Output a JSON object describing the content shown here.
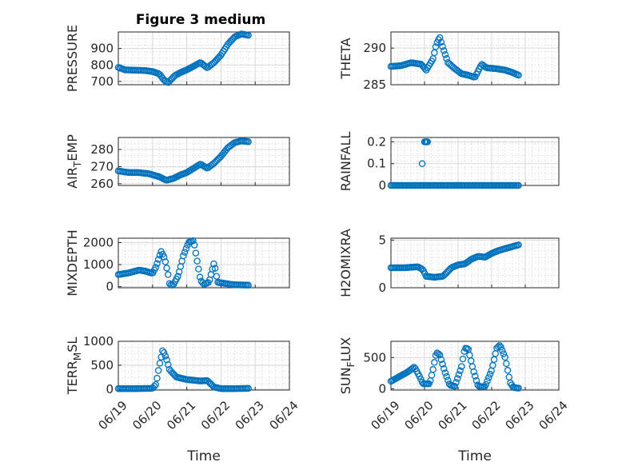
{
  "figure": {
    "title": "Figure 3 medium"
  },
  "chart_data": [
    {
      "type": "scatter",
      "ylabel": "PRESSURE",
      "title": "Figure 3 medium",
      "xlim": [
        "06/19",
        "06/24"
      ],
      "ylim": [
        680,
        1000
      ],
      "yticks": [
        "700",
        "800",
        "900"
      ],
      "yticks_values": [
        700,
        800,
        900
      ],
      "xticks": [
        "06/19",
        "06/20",
        "06/21",
        "06/22",
        "06/23",
        "06/24"
      ],
      "show_xticklabels": false,
      "grid": true,
      "marker_color": "#0072BD",
      "knots": [
        [
          0.0,
          785
        ],
        [
          0.2,
          770
        ],
        [
          0.5,
          768
        ],
        [
          0.8,
          766
        ],
        [
          1.0,
          760
        ],
        [
          1.2,
          745
        ],
        [
          1.35,
          705
        ],
        [
          1.45,
          692
        ],
        [
          1.65,
          735
        ],
        [
          1.8,
          752
        ],
        [
          2.0,
          770
        ],
        [
          2.2,
          792
        ],
        [
          2.4,
          815
        ],
        [
          2.6,
          782
        ],
        [
          2.8,
          815
        ],
        [
          3.0,
          860
        ],
        [
          3.2,
          925
        ],
        [
          3.4,
          970
        ],
        [
          3.6,
          988
        ],
        [
          3.8,
          980
        ]
      ]
    },
    {
      "type": "scatter",
      "ylabel": "THETA",
      "xlim": [
        "06/19",
        "06/24"
      ],
      "ylim": [
        285,
        292.2
      ],
      "yticks": [
        "285",
        "290"
      ],
      "yticks_values": [
        285,
        290
      ],
      "xticks": [
        "06/19",
        "06/20",
        "06/21",
        "06/22",
        "06/23",
        "06/24"
      ],
      "show_xticklabels": false,
      "grid": true,
      "marker_color": "#0072BD",
      "knots": [
        [
          0.0,
          287.5
        ],
        [
          0.3,
          287.6
        ],
        [
          0.6,
          288.0
        ],
        [
          0.9,
          287.8
        ],
        [
          1.05,
          287.0
        ],
        [
          1.25,
          288.5
        ],
        [
          1.35,
          290.5
        ],
        [
          1.45,
          291.5
        ],
        [
          1.55,
          290.0
        ],
        [
          1.7,
          288.0
        ],
        [
          1.9,
          287.2
        ],
        [
          2.1,
          286.5
        ],
        [
          2.3,
          286.3
        ],
        [
          2.5,
          286.0
        ],
        [
          2.7,
          287.8
        ],
        [
          2.85,
          287.3
        ],
        [
          3.1,
          287.2
        ],
        [
          3.4,
          287.0
        ],
        [
          3.6,
          286.7
        ],
        [
          3.8,
          286.3
        ]
      ]
    },
    {
      "type": "scatter",
      "ylabel": "AIR_TEMP",
      "xlim": [
        "06/19",
        "06/24"
      ],
      "ylim": [
        259,
        287
      ],
      "yticks": [
        "260",
        "270",
        "280"
      ],
      "yticks_values": [
        260,
        270,
        280
      ],
      "xticks": [
        "06/19",
        "06/20",
        "06/21",
        "06/22",
        "06/23",
        "06/24"
      ],
      "show_xticklabels": false,
      "grid": true,
      "marker_color": "#0072BD",
      "knots": [
        [
          0.0,
          267.5
        ],
        [
          0.3,
          266.5
        ],
        [
          0.6,
          266.5
        ],
        [
          0.9,
          265.8
        ],
        [
          1.2,
          264.0
        ],
        [
          1.4,
          262.0
        ],
        [
          1.6,
          263.0
        ],
        [
          1.8,
          265.0
        ],
        [
          2.0,
          266.5
        ],
        [
          2.2,
          269.0
        ],
        [
          2.4,
          271.5
        ],
        [
          2.6,
          269.0
        ],
        [
          2.8,
          272.0
        ],
        [
          3.0,
          276.0
        ],
        [
          3.2,
          281.0
        ],
        [
          3.4,
          284.0
        ],
        [
          3.6,
          285.0
        ],
        [
          3.8,
          284.5
        ]
      ]
    },
    {
      "type": "scatter",
      "ylabel": "RAINFALL",
      "xlim": [
        "06/19",
        "06/24"
      ],
      "ylim": [
        0,
        0.22
      ],
      "yticks": [
        "0",
        "0.1",
        "0.2"
      ],
      "yticks_values": [
        0,
        0.1,
        0.2
      ],
      "xticks": [
        "06/19",
        "06/20",
        "06/21",
        "06/22",
        "06/23",
        "06/24"
      ],
      "show_xticklabels": false,
      "grid": true,
      "marker_color": "#0072BD",
      "base_value": 0,
      "spikes": [
        [
          0.93,
          0.1
        ],
        [
          1.0,
          0.2
        ],
        [
          1.03,
          0.2
        ],
        [
          1.06,
          0.2
        ],
        [
          1.09,
          0.2
        ]
      ],
      "knots": [
        [
          0.0,
          0
        ],
        [
          3.8,
          0
        ]
      ]
    },
    {
      "type": "scatter",
      "ylabel": "MIXDEPTH",
      "xlim": [
        "06/19",
        "06/24"
      ],
      "ylim": [
        -50,
        2200
      ],
      "yticks": [
        "0",
        "1000",
        "2000"
      ],
      "yticks_values": [
        0,
        1000,
        2000
      ],
      "xticks": [
        "06/19",
        "06/20",
        "06/21",
        "06/22",
        "06/23",
        "06/24"
      ],
      "show_xticklabels": false,
      "grid": true,
      "marker_color": "#0072BD",
      "knots": [
        [
          0.0,
          550
        ],
        [
          0.3,
          620
        ],
        [
          0.6,
          750
        ],
        [
          0.8,
          700
        ],
        [
          1.0,
          600
        ],
        [
          1.1,
          900
        ],
        [
          1.25,
          1600
        ],
        [
          1.35,
          1300
        ],
        [
          1.45,
          600
        ],
        [
          1.5,
          100
        ],
        [
          1.6,
          60
        ],
        [
          1.75,
          500
        ],
        [
          1.9,
          1400
        ],
        [
          2.05,
          2000
        ],
        [
          2.2,
          2100
        ],
        [
          2.3,
          1200
        ],
        [
          2.4,
          300
        ],
        [
          2.5,
          100
        ],
        [
          2.65,
          200
        ],
        [
          2.8,
          1100
        ],
        [
          2.9,
          200
        ],
        [
          3.1,
          150
        ],
        [
          3.3,
          100
        ],
        [
          3.5,
          80
        ],
        [
          3.8,
          70
        ]
      ]
    },
    {
      "type": "scatter",
      "ylabel": "H2OMIXRA",
      "xlim": [
        "06/19",
        "06/24"
      ],
      "ylim": [
        0,
        5.2
      ],
      "yticks": [
        "0",
        "5"
      ],
      "yticks_values": [
        0,
        5
      ],
      "xticks": [
        "06/19",
        "06/20",
        "06/21",
        "06/22",
        "06/23",
        "06/24"
      ],
      "show_xticklabels": false,
      "grid": true,
      "marker_color": "#0072BD",
      "knots": [
        [
          0.0,
          2.1
        ],
        [
          0.4,
          2.1
        ],
        [
          0.8,
          2.2
        ],
        [
          0.95,
          1.9
        ],
        [
          1.05,
          1.2
        ],
        [
          1.3,
          1.1
        ],
        [
          1.55,
          1.2
        ],
        [
          1.8,
          2.1
        ],
        [
          2.0,
          2.4
        ],
        [
          2.2,
          2.5
        ],
        [
          2.4,
          3.0
        ],
        [
          2.6,
          3.3
        ],
        [
          2.8,
          3.2
        ],
        [
          3.0,
          3.6
        ],
        [
          3.2,
          3.9
        ],
        [
          3.4,
          4.1
        ],
        [
          3.6,
          4.3
        ],
        [
          3.8,
          4.5
        ]
      ]
    },
    {
      "type": "scatter",
      "ylabel": "TERR_MSL",
      "xlim": [
        "06/19",
        "06/24"
      ],
      "ylim": [
        -20,
        1000
      ],
      "yticks": [
        "0",
        "500",
        "1000"
      ],
      "yticks_values": [
        0,
        500,
        1000
      ],
      "xticks": [
        "06/19",
        "06/20",
        "06/21",
        "06/22",
        "06/23",
        "06/24"
      ],
      "show_xticklabels": true,
      "xlabel": "Time",
      "grid": true,
      "marker_color": "#0072BD",
      "knots": [
        [
          0.0,
          10
        ],
        [
          0.5,
          10
        ],
        [
          1.0,
          15
        ],
        [
          1.1,
          100
        ],
        [
          1.2,
          500
        ],
        [
          1.3,
          820
        ],
        [
          1.4,
          650
        ],
        [
          1.5,
          400
        ],
        [
          1.7,
          250
        ],
        [
          2.0,
          200
        ],
        [
          2.4,
          170
        ],
        [
          2.6,
          180
        ],
        [
          2.8,
          40
        ],
        [
          3.0,
          10
        ],
        [
          3.4,
          10
        ],
        [
          3.8,
          15
        ]
      ]
    },
    {
      "type": "scatter",
      "ylabel": "SUN_FLUX",
      "xlim": [
        "06/19",
        "06/24"
      ],
      "ylim": [
        -20,
        760
      ],
      "yticks": [
        "0",
        "500"
      ],
      "yticks_values": [
        0,
        500
      ],
      "xticks": [
        "06/19",
        "06/20",
        "06/21",
        "06/22",
        "06/23",
        "06/24"
      ],
      "show_xticklabels": true,
      "xlabel": "Time",
      "grid": true,
      "marker_color": "#0072BD",
      "knots": [
        [
          0.0,
          120
        ],
        [
          0.3,
          210
        ],
        [
          0.5,
          270
        ],
        [
          0.7,
          350
        ],
        [
          0.85,
          200
        ],
        [
          0.95,
          80
        ],
        [
          1.15,
          80
        ],
        [
          1.25,
          300
        ],
        [
          1.35,
          580
        ],
        [
          1.45,
          550
        ],
        [
          1.6,
          280
        ],
        [
          1.75,
          60
        ],
        [
          1.9,
          40
        ],
        [
          2.1,
          350
        ],
        [
          2.2,
          650
        ],
        [
          2.3,
          640
        ],
        [
          2.45,
          300
        ],
        [
          2.6,
          40
        ],
        [
          2.8,
          30
        ],
        [
          3.0,
          300
        ],
        [
          3.15,
          650
        ],
        [
          3.25,
          700
        ],
        [
          3.4,
          500
        ],
        [
          3.55,
          100
        ],
        [
          3.65,
          20
        ],
        [
          3.8,
          10
        ]
      ]
    }
  ]
}
